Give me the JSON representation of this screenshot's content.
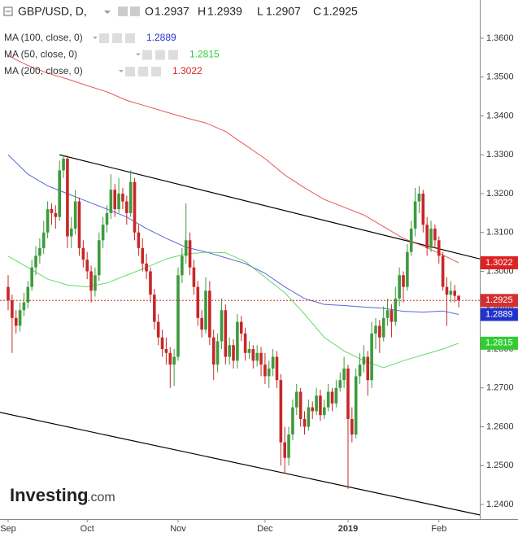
{
  "chart_data": {
    "type": "candlestick",
    "title": "GBP/USD, D,",
    "ohlc_labels": [
      "O",
      "H",
      "L",
      "C"
    ],
    "up_color": "#3d9a3d",
    "down_color": "#c62828",
    "last_price_color": "#d32f2f",
    "ohlc": [
      [
        1.296,
        1.299,
        1.29,
        1.2925
      ],
      [
        1.2925,
        1.294,
        1.279,
        1.288
      ],
      [
        1.288,
        1.29,
        1.284,
        1.286
      ],
      [
        1.286,
        1.292,
        1.2845,
        1.29
      ],
      [
        1.29,
        1.2945,
        1.2885,
        1.292
      ],
      [
        1.292,
        1.2975,
        1.2905,
        1.296
      ],
      [
        1.296,
        1.303,
        1.295,
        1.301
      ],
      [
        1.301,
        1.3065,
        1.299,
        1.304
      ],
      [
        1.304,
        1.3085,
        1.302,
        1.306
      ],
      [
        1.306,
        1.313,
        1.3045,
        1.31
      ],
      [
        1.31,
        1.318,
        1.3085,
        1.316
      ],
      [
        1.316,
        1.3175,
        1.312,
        1.315
      ],
      [
        1.315,
        1.317,
        1.311,
        1.314
      ],
      [
        1.314,
        1.3285,
        1.313,
        1.326
      ],
      [
        1.326,
        1.33,
        1.324,
        1.329
      ],
      [
        1.329,
        1.3298,
        1.306,
        1.309
      ],
      [
        1.309,
        1.314,
        1.306,
        1.311
      ],
      [
        1.311,
        1.321,
        1.3095,
        1.318
      ],
      [
        1.318,
        1.319,
        1.304,
        1.306
      ],
      [
        1.306,
        1.308,
        1.301,
        1.303
      ],
      [
        1.303,
        1.305,
        1.298,
        1.3
      ],
      [
        1.3,
        1.3015,
        1.292,
        1.295
      ],
      [
        1.295,
        1.301,
        1.2935,
        1.299
      ],
      [
        1.299,
        1.31,
        1.2975,
        1.308
      ],
      [
        1.308,
        1.314,
        1.306,
        1.312
      ],
      [
        1.312,
        1.317,
        1.31,
        1.315
      ],
      [
        1.315,
        1.325,
        1.3135,
        1.321
      ],
      [
        1.321,
        1.3225,
        1.314,
        1.316
      ],
      [
        1.316,
        1.324,
        1.315,
        1.32
      ],
      [
        1.32,
        1.3215,
        1.316,
        1.318
      ],
      [
        1.318,
        1.3195,
        1.312,
        1.315
      ],
      [
        1.315,
        1.326,
        1.314,
        1.323
      ],
      [
        1.323,
        1.324,
        1.308,
        1.31
      ],
      [
        1.31,
        1.312,
        1.304,
        1.306
      ],
      [
        1.306,
        1.3085,
        1.3,
        1.302
      ],
      [
        1.302,
        1.3045,
        1.298,
        1.3
      ],
      [
        1.3,
        1.301,
        1.292,
        1.294
      ],
      [
        1.294,
        1.2955,
        1.285,
        1.287
      ],
      [
        1.287,
        1.289,
        1.281,
        1.283
      ],
      [
        1.283,
        1.285,
        1.278,
        1.28
      ],
      [
        1.28,
        1.283,
        1.276,
        1.279
      ],
      [
        1.279,
        1.2805,
        1.27,
        1.276
      ],
      [
        1.276,
        1.28,
        1.2705,
        1.278
      ],
      [
        1.278,
        1.301,
        1.277,
        1.299
      ],
      [
        1.299,
        1.306,
        1.297,
        1.304
      ],
      [
        1.304,
        1.3175,
        1.302,
        1.308
      ],
      [
        1.308,
        1.31,
        1.299,
        1.301
      ],
      [
        1.301,
        1.303,
        1.294,
        1.296
      ],
      [
        1.296,
        1.2975,
        1.286,
        1.288
      ],
      [
        1.288,
        1.29,
        1.283,
        1.285
      ],
      [
        1.285,
        1.2985,
        1.284,
        1.295
      ],
      [
        1.295,
        1.2975,
        1.281,
        1.283
      ],
      [
        1.283,
        1.285,
        1.272,
        1.276
      ],
      [
        1.276,
        1.284,
        1.274,
        1.282
      ],
      [
        1.282,
        1.293,
        1.28,
        1.29
      ],
      [
        1.29,
        1.2915,
        1.276,
        1.278
      ],
      [
        1.278,
        1.283,
        1.276,
        1.281
      ],
      [
        1.281,
        1.2825,
        1.275,
        1.277
      ],
      [
        1.277,
        1.289,
        1.275,
        1.287
      ],
      [
        1.287,
        1.2885,
        1.282,
        1.284
      ],
      [
        1.284,
        1.2855,
        1.277,
        1.279
      ],
      [
        1.279,
        1.282,
        1.2775,
        1.28
      ],
      [
        1.28,
        1.281,
        1.275,
        1.277
      ],
      [
        1.277,
        1.281,
        1.2755,
        1.279
      ],
      [
        1.279,
        1.2805,
        1.273,
        1.276
      ],
      [
        1.276,
        1.279,
        1.271,
        1.273
      ],
      [
        1.273,
        1.277,
        1.27,
        1.275
      ],
      [
        1.275,
        1.28,
        1.273,
        1.278
      ],
      [
        1.278,
        1.2795,
        1.27,
        1.272
      ],
      [
        1.272,
        1.2735,
        1.25,
        1.256
      ],
      [
        1.256,
        1.26,
        1.248,
        1.252
      ],
      [
        1.252,
        1.26,
        1.25,
        1.258
      ],
      [
        1.258,
        1.267,
        1.2565,
        1.265
      ],
      [
        1.265,
        1.271,
        1.263,
        1.269
      ],
      [
        1.269,
        1.27,
        1.26,
        1.262
      ],
      [
        1.262,
        1.264,
        1.258,
        1.26
      ],
      [
        1.26,
        1.267,
        1.259,
        1.265
      ],
      [
        1.265,
        1.2665,
        1.262,
        1.264
      ],
      [
        1.264,
        1.27,
        1.263,
        1.268
      ],
      [
        1.268,
        1.2695,
        1.2615,
        1.263
      ],
      [
        1.263,
        1.267,
        1.262,
        1.265
      ],
      [
        1.265,
        1.271,
        1.264,
        1.269
      ],
      [
        1.269,
        1.27,
        1.264,
        1.266
      ],
      [
        1.266,
        1.272,
        1.265,
        1.27
      ],
      [
        1.27,
        1.274,
        1.269,
        1.272
      ],
      [
        1.272,
        1.278,
        1.27,
        1.275
      ],
      [
        1.275,
        1.276,
        1.244,
        1.262
      ],
      [
        1.262,
        1.265,
        1.256,
        1.258
      ],
      [
        1.258,
        1.275,
        1.257,
        1.273
      ],
      [
        1.273,
        1.279,
        1.271,
        1.276
      ],
      [
        1.276,
        1.281,
        1.274,
        1.278
      ],
      [
        1.278,
        1.2795,
        1.268,
        1.272
      ],
      [
        1.272,
        1.287,
        1.27,
        1.284
      ],
      [
        1.284,
        1.288,
        1.28,
        1.286
      ],
      [
        1.286,
        1.2875,
        1.279,
        1.283
      ],
      [
        1.283,
        1.291,
        1.282,
        1.288
      ],
      [
        1.288,
        1.293,
        1.286,
        1.29
      ],
      [
        1.29,
        1.2915,
        1.283,
        1.287
      ],
      [
        1.287,
        1.296,
        1.286,
        1.293
      ],
      [
        1.293,
        1.301,
        1.291,
        1.299
      ],
      [
        1.299,
        1.3,
        1.292,
        1.296
      ],
      [
        1.296,
        1.307,
        1.295,
        1.305
      ],
      [
        1.305,
        1.313,
        1.304,
        1.311
      ],
      [
        1.311,
        1.3215,
        1.309,
        1.318
      ],
      [
        1.318,
        1.322,
        1.315,
        1.32
      ],
      [
        1.32,
        1.321,
        1.31,
        1.312
      ],
      [
        1.312,
        1.314,
        1.304,
        1.306
      ],
      [
        1.306,
        1.313,
        1.305,
        1.311
      ],
      [
        1.311,
        1.312,
        1.306,
        1.308
      ],
      [
        1.308,
        1.309,
        1.302,
        1.304
      ],
      [
        1.304,
        1.305,
        1.295,
        1.296
      ],
      [
        1.296,
        1.2985,
        1.286,
        1.294
      ],
      [
        1.294,
        1.2975,
        1.292,
        1.295
      ],
      [
        1.295,
        1.2965,
        1.292,
        1.2937
      ],
      [
        1.2937,
        1.2939,
        1.2907,
        1.2925
      ]
    ],
    "series": [
      {
        "name": "MA (100, close, 0)",
        "color": "#2233cc",
        "x": [
          0,
          5,
          10,
          15,
          20,
          25,
          30,
          35,
          40,
          45,
          50,
          55,
          60,
          65,
          70,
          75,
          80,
          85,
          90,
          95,
          100,
          105,
          110,
          114
        ],
        "values": [
          1.33,
          1.325,
          1.322,
          1.32,
          1.318,
          1.316,
          1.314,
          1.311,
          1.3085,
          1.3062,
          1.305,
          1.3035,
          1.302,
          1.2995,
          1.296,
          1.293,
          1.2915,
          1.2912,
          1.2908,
          1.2905,
          1.2897,
          1.2895,
          1.2898,
          1.2889
        ]
      },
      {
        "name": "MA (50, close, 0)",
        "color": "#33cc33",
        "x": [
          0,
          5,
          10,
          15,
          20,
          25,
          30,
          35,
          40,
          45,
          50,
          55,
          60,
          65,
          70,
          75,
          80,
          85,
          90,
          95,
          100,
          105,
          110,
          114
        ],
        "values": [
          1.3039,
          1.301,
          1.298,
          1.2965,
          1.296,
          1.297,
          1.299,
          1.301,
          1.3032,
          1.3045,
          1.3049,
          1.3048,
          1.3025,
          1.2985,
          1.2945,
          1.289,
          1.283,
          1.2795,
          1.277,
          1.2752,
          1.277,
          1.2785,
          1.28,
          1.2815
        ]
      },
      {
        "name": "MA (200, close, 0)",
        "color": "#dd2222",
        "x": [
          0,
          5,
          10,
          15,
          20,
          25,
          30,
          35,
          40,
          45,
          50,
          55,
          60,
          65,
          70,
          75,
          80,
          85,
          90,
          95,
          100,
          105,
          110,
          114
        ],
        "values": [
          1.3555,
          1.353,
          1.351,
          1.3495,
          1.3478,
          1.3462,
          1.344,
          1.3425,
          1.341,
          1.3395,
          1.3382,
          1.336,
          1.3325,
          1.329,
          1.3248,
          1.3215,
          1.3185,
          1.3165,
          1.3145,
          1.3115,
          1.3085,
          1.3065,
          1.3042,
          1.3022
        ]
      }
    ],
    "trendlines": [
      {
        "color": "#000000",
        "x": [
          13,
          119.34
        ],
        "y": [
          1.33,
          1.3032
        ]
      },
      {
        "color": "#000000",
        "x": [
          -2.06,
          119.34
        ],
        "y": [
          1.2637,
          1.2373
        ]
      }
    ],
    "xlim": [
      -2.06,
      119.34
    ],
    "xticks": [
      {
        "value": 0,
        "label": "Sep"
      },
      {
        "value": 20,
        "label": "Oct"
      },
      {
        "value": 43,
        "label": "Nov"
      },
      {
        "value": 65,
        "label": "Dec"
      },
      {
        "value": 86,
        "label": "2019"
      },
      {
        "value": 109,
        "label": "Feb"
      }
    ],
    "ylim": [
      1.23623,
      1.36984
    ],
    "yticks": [
      {
        "value": 1.24,
        "label": "1.2400"
      },
      {
        "value": 1.25,
        "label": "1.2500"
      },
      {
        "value": 1.26,
        "label": "1.2600"
      },
      {
        "value": 1.27,
        "label": "1.2700"
      },
      {
        "value": 1.28,
        "label": "1.2800"
      },
      {
        "value": 1.29,
        "label": "1.2900"
      },
      {
        "value": 1.3,
        "label": "1.3000"
      },
      {
        "value": 1.31,
        "label": "1.3100"
      },
      {
        "value": 1.32,
        "label": "1.3200"
      },
      {
        "value": 1.33,
        "label": "1.3300"
      },
      {
        "value": 1.34,
        "label": "1.3400"
      },
      {
        "value": 1.35,
        "label": "1.3500"
      },
      {
        "value": 1.36,
        "label": "1.3600"
      }
    ],
    "grid": false,
    "watermark": [
      "Investing",
      ".com"
    ]
  }
}
